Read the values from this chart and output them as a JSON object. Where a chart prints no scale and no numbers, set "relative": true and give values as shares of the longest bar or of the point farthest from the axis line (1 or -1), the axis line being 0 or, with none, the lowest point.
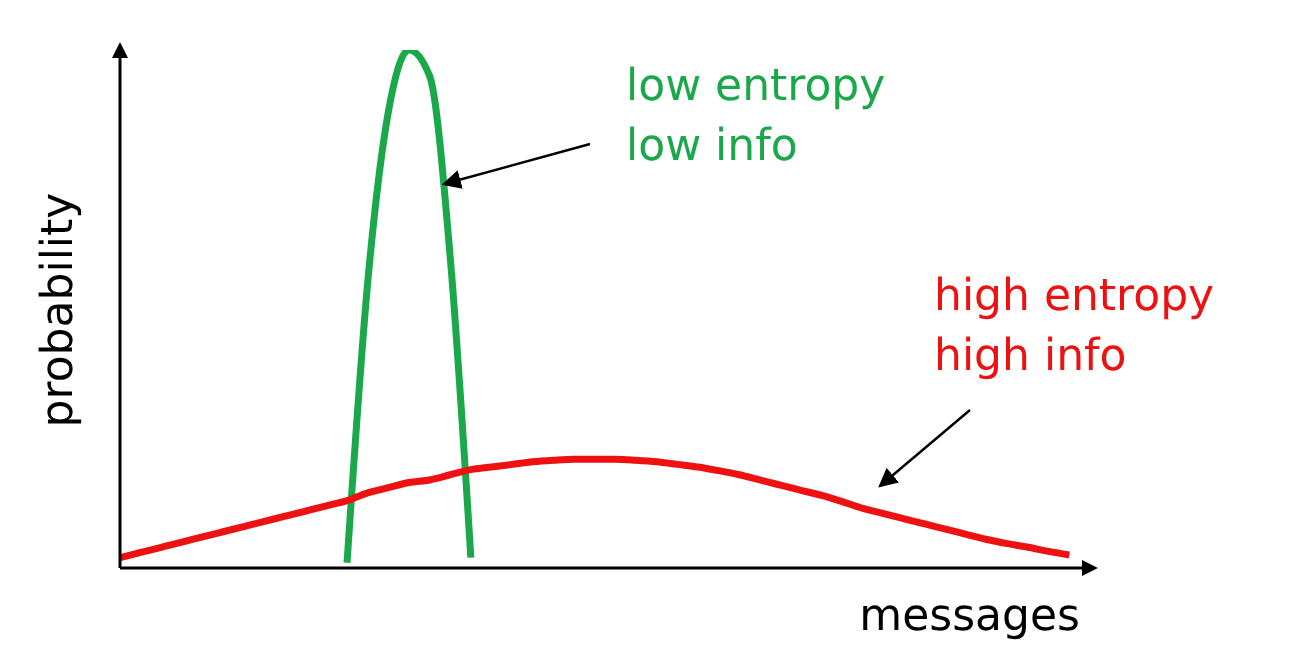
{
  "chart_data": {
    "type": "line",
    "relative": true,
    "xlabel": "messages",
    "ylabel": "probability",
    "marker": "none",
    "line_style": "solid",
    "categories": [
      null,
      null,
      null,
      null,
      null,
      null,
      null,
      null,
      null,
      null,
      null,
      null,
      null,
      null,
      null,
      null,
      null,
      null,
      null,
      null,
      null,
      null,
      null,
      null,
      null,
      null,
      null,
      null,
      null,
      null,
      null,
      null,
      null,
      null,
      null,
      null,
      null,
      null,
      null,
      null,
      null,
      null,
      null,
      null,
      null,
      null,
      null,
      null
    ],
    "series": [
      {
        "color": "#1aa84a",
        "values": [
          null,
          null,
          null,
          null,
          null,
          null,
          null,
          null,
          null,
          null,
          null,
          0.01,
          0.55,
          0.88,
          1,
          0.95,
          0.6,
          0.02,
          null,
          null,
          null,
          null,
          null,
          null,
          null,
          null,
          null,
          null,
          null,
          null,
          null,
          null,
          null,
          null,
          null,
          null,
          null,
          null,
          null,
          null,
          null,
          null,
          null,
          null,
          null,
          null,
          null,
          null
        ]
      },
      {
        "color": "#ee1111",
        "values": [
          0.02,
          0.03,
          0.04,
          0.05,
          0.06,
          0.07,
          0.08,
          0.09,
          0.1,
          0.11,
          0.12,
          0.13,
          0.145,
          0.155,
          0.165,
          0.17,
          0.18,
          0.19,
          0.195,
          0.2,
          0.205,
          0.208,
          0.21,
          0.21,
          0.21,
          0.208,
          0.205,
          0.2,
          0.195,
          0.188,
          0.18,
          0.17,
          0.16,
          0.15,
          0.14,
          0.128,
          0.115,
          0.105,
          0.095,
          0.085,
          0.075,
          0.065,
          0.055,
          0.047,
          0.04,
          0.032,
          0.025,
          null
        ]
      }
    ],
    "annotations": [
      "low entropy\nlow info",
      "high entropy\nhigh info"
    ]
  }
}
